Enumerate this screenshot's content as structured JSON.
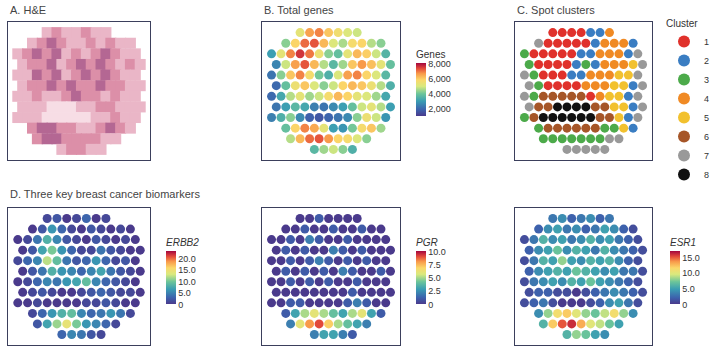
{
  "row_title": "D. Three key breast cancer biomarkers",
  "chart_data": [
    {
      "type": "image",
      "title": "A. H&E",
      "tick_labels": false,
      "clim": [
        1,
        5
      ],
      "cells": [
        [
          null,
          null,
          null,
          2,
          3,
          2,
          2,
          3,
          2,
          2,
          null,
          null,
          null
        ],
        [
          null,
          2,
          3,
          4,
          3,
          2,
          2,
          3,
          2,
          3,
          2,
          2,
          null
        ],
        [
          2,
          3,
          4,
          3,
          4,
          2,
          3,
          2,
          3,
          4,
          3,
          2,
          2
        ],
        [
          2,
          3,
          3,
          4,
          2,
          3,
          4,
          3,
          4,
          3,
          2,
          3,
          2
        ],
        [
          2,
          2,
          4,
          3,
          4,
          2,
          3,
          4,
          3,
          4,
          3,
          2,
          2
        ],
        [
          2,
          3,
          3,
          4,
          3,
          4,
          3,
          3,
          4,
          3,
          3,
          2,
          2
        ],
        [
          2,
          2,
          3,
          2,
          2,
          3,
          4,
          3,
          3,
          2,
          3,
          2,
          2
        ],
        [
          2,
          2,
          2,
          1,
          1,
          1,
          2,
          2,
          3,
          3,
          2,
          2,
          2
        ],
        [
          2,
          2,
          2,
          1,
          1,
          1,
          1,
          1,
          2,
          2,
          3,
          2,
          2
        ],
        [
          null,
          3,
          4,
          4,
          3,
          3,
          2,
          2,
          3,
          4,
          3,
          2,
          null
        ],
        [
          null,
          null,
          3,
          4,
          4,
          3,
          3,
          3,
          3,
          2,
          2,
          null,
          null
        ],
        [
          null,
          null,
          null,
          null,
          2,
          3,
          3,
          2,
          2,
          null,
          null,
          null,
          null
        ]
      ]
    },
    {
      "type": "spatial",
      "title": "B. Total genes",
      "tick_labels": false,
      "colorbar": {
        "title": "Genes",
        "range": [
          1000,
          8000
        ],
        "ticks": [
          {
            "value": 2000,
            "label": "2,000"
          },
          {
            "value": 4000,
            "label": "4,000"
          },
          {
            "value": 6000,
            "label": "6,000"
          },
          {
            "value": 8000,
            "label": "8,000"
          }
        ]
      },
      "cells": [
        [
          null,
          null,
          null,
          5200,
          6500,
          6800,
          6000,
          5500,
          5000,
          4800,
          null,
          null,
          null
        ],
        [
          null,
          4200,
          5800,
          7000,
          7200,
          6200,
          5000,
          4500,
          5600,
          5800,
          4600,
          4200,
          null
        ],
        [
          3000,
          5200,
          6800,
          7500,
          6900,
          5400,
          4200,
          3800,
          5200,
          6200,
          5900,
          4800,
          3500
        ],
        [
          2500,
          4800,
          6500,
          7200,
          6200,
          4600,
          3600,
          4400,
          6000,
          6600,
          6100,
          5200,
          3800
        ],
        [
          2200,
          4200,
          6000,
          6800,
          5600,
          4000,
          3400,
          5000,
          6500,
          6800,
          5800,
          5000,
          3600
        ],
        [
          2000,
          3800,
          5400,
          6000,
          5000,
          4200,
          4800,
          5800,
          6200,
          6000,
          5400,
          4600,
          3400
        ],
        [
          2000,
          3200,
          4600,
          5200,
          4400,
          4800,
          5600,
          6200,
          5800,
          5200,
          5000,
          4400,
          3200
        ],
        [
          2200,
          3000,
          3600,
          3200,
          2400,
          2200,
          2600,
          3000,
          3800,
          4800,
          5200,
          4600,
          3000
        ],
        [
          2400,
          3400,
          4200,
          2600,
          1800,
          1600,
          1900,
          2200,
          2600,
          4200,
          5400,
          4800,
          2800
        ],
        [
          null,
          3800,
          5800,
          6800,
          6400,
          5200,
          3000,
          2800,
          4000,
          5600,
          6000,
          4400,
          null
        ],
        [
          null,
          null,
          4600,
          6200,
          7000,
          7200,
          6600,
          5800,
          5600,
          5000,
          4200,
          null,
          null
        ],
        [
          null,
          null,
          null,
          null,
          3600,
          4400,
          4800,
          4200,
          3400,
          null,
          null,
          null,
          null
        ]
      ]
    },
    {
      "type": "clusters",
      "title": "C. Spot clusters",
      "tick_labels": false,
      "legend_title": "Cluster",
      "series": [
        {
          "name": "1",
          "color": "#e0312b"
        },
        {
          "name": "2",
          "color": "#3a7dc2"
        },
        {
          "name": "3",
          "color": "#4caa4a"
        },
        {
          "name": "4",
          "color": "#f08a24"
        },
        {
          "name": "5",
          "color": "#f2c12e"
        },
        {
          "name": "6",
          "color": "#a65628"
        },
        {
          "name": "7",
          "color": "#999999"
        },
        {
          "name": "8",
          "color": "#111111"
        }
      ],
      "cells": [
        [
          null,
          null,
          null,
          1,
          1,
          1,
          1,
          2,
          2,
          4,
          null,
          null,
          null
        ],
        [
          null,
          7,
          1,
          1,
          1,
          1,
          1,
          2,
          4,
          4,
          4,
          2,
          null
        ],
        [
          3,
          1,
          1,
          1,
          1,
          1,
          2,
          2,
          4,
          4,
          4,
          2,
          7
        ],
        [
          3,
          1,
          1,
          1,
          1,
          2,
          3,
          2,
          4,
          4,
          4,
          5,
          7
        ],
        [
          7,
          3,
          1,
          1,
          1,
          2,
          2,
          4,
          4,
          4,
          5,
          5,
          7
        ],
        [
          7,
          3,
          1,
          1,
          1,
          1,
          4,
          4,
          4,
          5,
          5,
          2,
          7
        ],
        [
          7,
          3,
          6,
          6,
          6,
          6,
          6,
          1,
          4,
          5,
          5,
          2,
          7
        ],
        [
          7,
          6,
          6,
          8,
          8,
          8,
          8,
          6,
          6,
          5,
          5,
          2,
          7
        ],
        [
          3,
          6,
          8,
          8,
          8,
          8,
          8,
          8,
          6,
          6,
          5,
          2,
          7
        ],
        [
          null,
          3,
          6,
          6,
          6,
          6,
          6,
          6,
          3,
          3,
          5,
          2,
          null
        ],
        [
          null,
          null,
          3,
          3,
          3,
          3,
          3,
          3,
          3,
          7,
          7,
          null,
          null
        ],
        [
          null,
          null,
          null,
          null,
          7,
          7,
          7,
          7,
          7,
          null,
          null,
          null,
          null
        ]
      ]
    },
    {
      "type": "spatial",
      "tick_labels": false,
      "colorbar": {
        "title": "ERBB2",
        "range": [
          0,
          23
        ],
        "ticks": [
          0,
          {
            "value": 5,
            "label": "5.0"
          },
          {
            "value": 10,
            "label": "10.0"
          },
          {
            "value": 15,
            "label": "15.0"
          },
          {
            "value": 20,
            "label": "20.0"
          }
        ]
      },
      "cells": [
        [
          null,
          null,
          null,
          1,
          2,
          0,
          1,
          3,
          0,
          1,
          null,
          null,
          null
        ],
        [
          null,
          0,
          2,
          6,
          3,
          1,
          0,
          2,
          1,
          0,
          1,
          0,
          null
        ],
        [
          0,
          1,
          4,
          8,
          5,
          2,
          1,
          0,
          2,
          1,
          0,
          1,
          0
        ],
        [
          0,
          2,
          7,
          10,
          6,
          3,
          1,
          1,
          4,
          2,
          1,
          0,
          0
        ],
        [
          1,
          3,
          5,
          12,
          9,
          4,
          2,
          3,
          6,
          3,
          1,
          2,
          0
        ],
        [
          0,
          2,
          4,
          8,
          6,
          5,
          3,
          5,
          7,
          4,
          2,
          1,
          0
        ],
        [
          0,
          1,
          3,
          5,
          4,
          6,
          7,
          9,
          5,
          3,
          2,
          1,
          0
        ],
        [
          0,
          1,
          2,
          1,
          0,
          0,
          1,
          2,
          3,
          2,
          1,
          1,
          0
        ],
        [
          0,
          0,
          1,
          0,
          0,
          0,
          0,
          1,
          1,
          2,
          1,
          0,
          0
        ],
        [
          null,
          1,
          3,
          6,
          8,
          9,
          5,
          3,
          4,
          6,
          4,
          1,
          null
        ],
        [
          null,
          null,
          2,
          7,
          11,
          14,
          10,
          6,
          5,
          3,
          1,
          null,
          null
        ],
        [
          null,
          null,
          null,
          null,
          3,
          5,
          4,
          2,
          1,
          null,
          null,
          null,
          null
        ]
      ]
    },
    {
      "type": "spatial",
      "tick_labels": false,
      "colorbar": {
        "title": "PGR",
        "range": [
          0,
          10
        ],
        "ticks": [
          0,
          2.5,
          {
            "value": 5,
            "label": "5.0"
          },
          7.5,
          {
            "value": 10,
            "label": "10.0"
          }
        ]
      },
      "cells": [
        [
          null,
          null,
          null,
          0,
          0,
          1,
          0,
          0,
          0,
          0,
          null,
          null,
          null
        ],
        [
          null,
          0,
          0,
          1,
          0,
          0,
          1,
          0,
          0,
          1,
          0,
          0,
          null
        ],
        [
          0,
          0,
          1,
          0,
          2,
          1,
          0,
          0,
          1,
          0,
          0,
          0,
          0
        ],
        [
          0,
          1,
          0,
          1,
          0,
          0,
          2,
          1,
          0,
          1,
          0,
          0,
          0
        ],
        [
          0,
          0,
          1,
          0,
          1,
          2,
          1,
          0,
          1,
          0,
          1,
          0,
          0
        ],
        [
          0,
          1,
          0,
          1,
          0,
          1,
          0,
          2,
          1,
          0,
          0,
          1,
          0
        ],
        [
          0,
          0,
          1,
          0,
          1,
          0,
          1,
          0,
          0,
          1,
          0,
          0,
          0
        ],
        [
          0,
          0,
          0,
          0,
          0,
          0,
          0,
          0,
          1,
          0,
          0,
          0,
          0
        ],
        [
          0,
          0,
          1,
          1,
          0,
          0,
          0,
          0,
          1,
          2,
          1,
          0,
          0
        ],
        [
          null,
          1,
          3,
          5,
          6,
          5,
          4,
          3,
          5,
          6,
          3,
          1,
          null
        ],
        [
          null,
          null,
          2,
          6,
          8,
          9,
          7,
          5,
          4,
          3,
          2,
          null,
          null
        ],
        [
          null,
          null,
          null,
          null,
          2,
          3,
          3,
          2,
          1,
          null,
          null,
          null,
          null
        ]
      ]
    },
    {
      "type": "spatial",
      "tick_labels": false,
      "colorbar": {
        "title": "ESR1",
        "range": [
          0,
          17
        ],
        "ticks": [
          0,
          {
            "value": 5,
            "label": "5.0"
          },
          {
            "value": 10,
            "label": "10.0"
          },
          {
            "value": 15,
            "label": "15.0"
          }
        ]
      },
      "cells": [
        [
          null,
          null,
          null,
          3,
          4,
          2,
          3,
          4,
          2,
          3,
          null,
          null,
          null
        ],
        [
          null,
          2,
          4,
          5,
          3,
          4,
          2,
          3,
          5,
          4,
          2,
          1,
          null
        ],
        [
          1,
          3,
          6,
          4,
          5,
          3,
          4,
          6,
          4,
          5,
          3,
          2,
          1
        ],
        [
          2,
          4,
          5,
          7,
          4,
          6,
          5,
          3,
          6,
          4,
          3,
          2,
          1
        ],
        [
          1,
          3,
          6,
          5,
          8,
          5,
          4,
          6,
          5,
          6,
          4,
          2,
          1
        ],
        [
          2,
          4,
          5,
          6,
          5,
          7,
          6,
          5,
          4,
          5,
          3,
          3,
          1
        ],
        [
          1,
          3,
          4,
          5,
          4,
          6,
          5,
          7,
          5,
          4,
          3,
          2,
          1
        ],
        [
          1,
          2,
          2,
          1,
          1,
          0,
          1,
          2,
          3,
          4,
          3,
          2,
          1
        ],
        [
          1,
          2,
          3,
          1,
          0,
          0,
          0,
          1,
          2,
          4,
          5,
          3,
          1
        ],
        [
          null,
          4,
          8,
          11,
          12,
          10,
          8,
          7,
          9,
          11,
          8,
          4,
          null
        ],
        [
          null,
          null,
          6,
          12,
          15,
          16,
          13,
          10,
          9,
          7,
          5,
          null,
          null
        ],
        [
          null,
          null,
          null,
          null,
          6,
          8,
          7,
          5,
          4,
          null,
          null,
          null,
          null
        ]
      ]
    }
  ]
}
